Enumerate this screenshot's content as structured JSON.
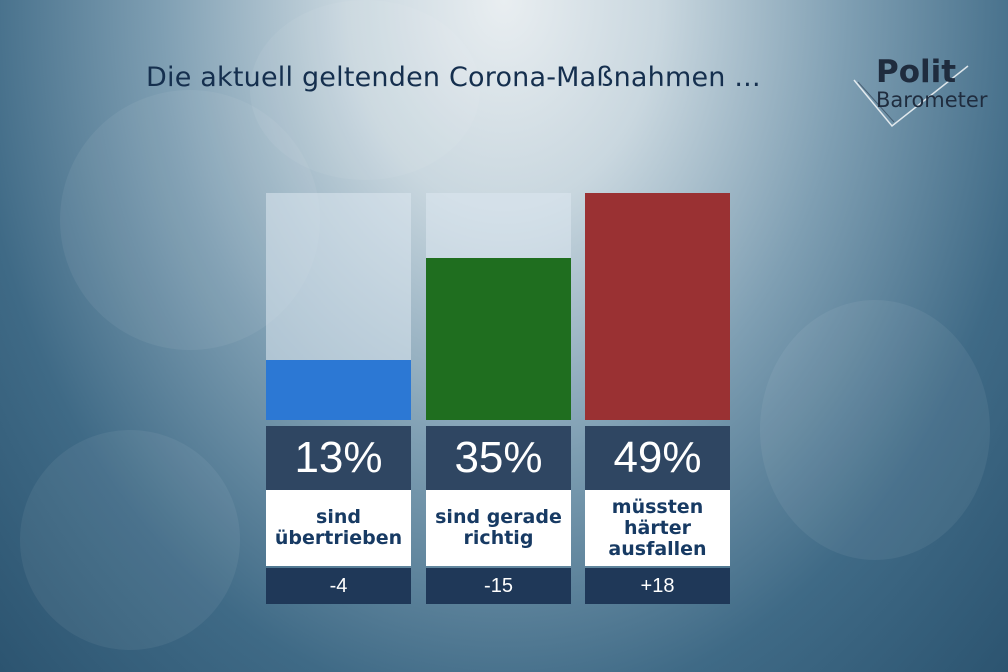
{
  "title": "Die aktuell geltenden Corona-Maßnahmen ...",
  "logo": {
    "line1": "Polit",
    "line2": "Barometer"
  },
  "chart_data": {
    "type": "bar",
    "ylim": [
      0,
      49
    ],
    "categories": [
      "sind\nübertrieben",
      "sind gerade\nrichtig",
      "müssten\nhärter\nausfallen"
    ],
    "values": [
      13,
      35,
      49
    ],
    "value_labels": [
      "13%",
      "35%",
      "49%"
    ],
    "change_labels": [
      "-4",
      "-15",
      "+18"
    ],
    "colors": [
      "#2c78d4",
      "#1f6e1f",
      "#9a3133"
    ]
  }
}
